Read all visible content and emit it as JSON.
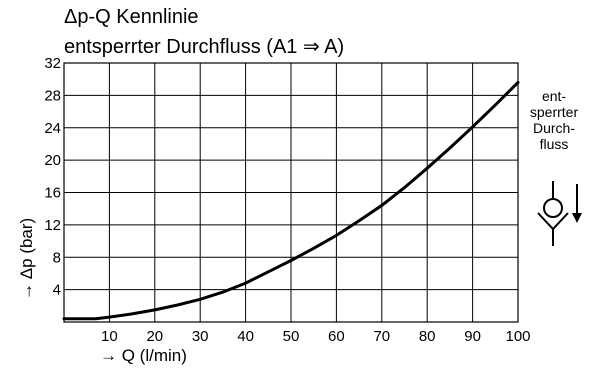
{
  "chart_data": {
    "type": "line",
    "title_line1": "Δp-Q Kennlinie",
    "title_line2": "entsperrter Durchfluss (A1 ⇒ A)",
    "xlabel": "→ Q (l/min)",
    "ylabel": "→ Δp (bar)",
    "xlim": [
      0,
      100
    ],
    "ylim": [
      0,
      32
    ],
    "xticks": [
      10,
      20,
      30,
      40,
      50,
      60,
      70,
      80,
      90,
      100
    ],
    "yticks": [
      4,
      8,
      12,
      16,
      20,
      24,
      28,
      32
    ],
    "grid": true,
    "series": [
      {
        "x": [
          0,
          7,
          10,
          15,
          20,
          25,
          30,
          35,
          40,
          45,
          50,
          55,
          60,
          65,
          70,
          75,
          80,
          85,
          90,
          95,
          100
        ],
        "y": [
          0.4,
          0.4,
          0.6,
          1.0,
          1.5,
          2.1,
          2.8,
          3.7,
          4.8,
          6.2,
          7.6,
          9.1,
          10.7,
          12.5,
          14.4,
          16.6,
          19.0,
          21.5,
          24.1,
          26.8,
          29.6
        ]
      }
    ],
    "side_label": [
      "ent-",
      "sperrter",
      "Durch-",
      "fluss"
    ]
  }
}
